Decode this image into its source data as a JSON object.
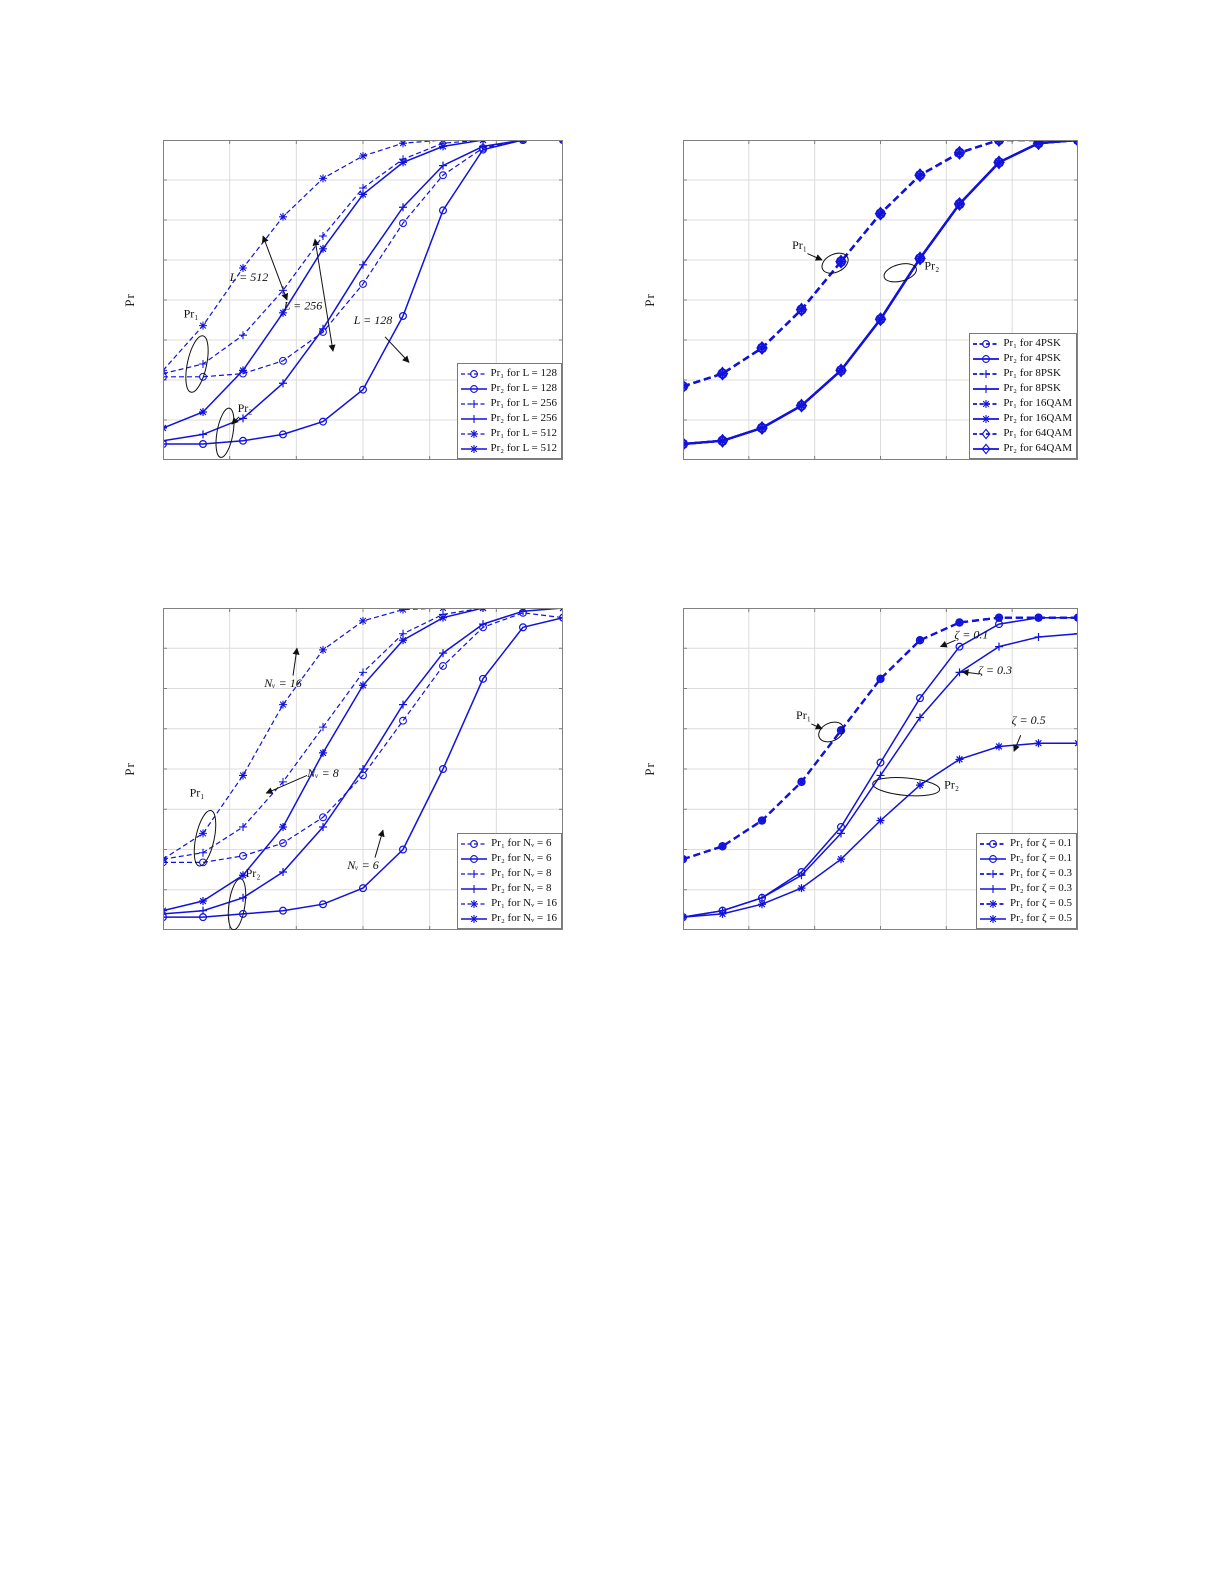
{
  "page": {
    "background": "#ffffff"
  },
  "colors": {
    "line": "#1212dd",
    "grid": "#dcdcdc",
    "axis": "#808080",
    "annotation": "#111111"
  },
  "chart_data": [
    {
      "id": "pr-vs-snr-for-L",
      "type": "line",
      "title": "",
      "xlabel": "",
      "ylabel": "Pr",
      "x_axis_note": "tick labels not visible; x normalized 0-1",
      "ylim": [
        0,
        1
      ],
      "grid": {
        "cols": 6,
        "rows": 8
      },
      "legend_position": "lower-right",
      "marker_size": 4,
      "x": [
        0,
        0.1,
        0.2,
        0.3,
        0.4,
        0.5,
        0.6,
        0.7,
        0.8,
        0.9,
        1
      ],
      "series": [
        {
          "label": "Pr₁ for L = 128",
          "marker": "circle",
          "dashed": true,
          "lw": 1.2,
          "values": [
            0.26,
            0.26,
            0.27,
            0.31,
            0.4,
            0.55,
            0.74,
            0.89,
            0.975,
            1,
            1
          ]
        },
        {
          "label": "Pr₂ for L = 128",
          "marker": "circle",
          "dashed": false,
          "lw": 1.5,
          "values": [
            0.05,
            0.05,
            0.06,
            0.08,
            0.12,
            0.22,
            0.45,
            0.78,
            0.97,
            1,
            1
          ]
        },
        {
          "label": "Pr₁ for L = 256",
          "marker": "plus",
          "dashed": true,
          "lw": 1.2,
          "values": [
            0.27,
            0.3,
            0.39,
            0.53,
            0.7,
            0.85,
            0.94,
            0.99,
            1,
            1,
            1
          ]
        },
        {
          "label": "Pr₂ for L = 256",
          "marker": "plus",
          "dashed": false,
          "lw": 1.5,
          "values": [
            0.06,
            0.08,
            0.13,
            0.24,
            0.41,
            0.61,
            0.79,
            0.92,
            0.98,
            1,
            1
          ]
        },
        {
          "label": "Pr₁ for L = 512",
          "marker": "asterisk",
          "dashed": true,
          "lw": 1.2,
          "values": [
            0.28,
            0.42,
            0.6,
            0.76,
            0.88,
            0.95,
            0.99,
            1,
            1,
            1,
            1
          ]
        },
        {
          "label": "Pr₂ for L = 512",
          "marker": "asterisk",
          "dashed": false,
          "lw": 1.5,
          "values": [
            0.1,
            0.15,
            0.28,
            0.46,
            0.66,
            0.83,
            0.93,
            0.98,
            1,
            1,
            1
          ]
        }
      ],
      "annotations": [
        {
          "type": "text",
          "text": "L = 512",
          "fx": 0.215,
          "fy": 0.56,
          "italic": true
        },
        {
          "type": "arrow",
          "x1": 0.25,
          "y1": 0.7,
          "x2": 0.31,
          "y2": 0.5,
          "double": true
        },
        {
          "type": "text",
          "text": "L = 256",
          "fx": 0.35,
          "fy": 0.47,
          "italic": true
        },
        {
          "type": "arrow",
          "x1": 0.38,
          "y1": 0.69,
          "x2": 0.425,
          "y2": 0.34,
          "double": true
        },
        {
          "type": "text",
          "text": "L = 128",
          "fx": 0.525,
          "fy": 0.425,
          "italic": true
        },
        {
          "type": "arrow",
          "x1": 0.555,
          "y1": 0.385,
          "x2": 0.615,
          "y2": 0.305,
          "double": false
        },
        {
          "type": "text",
          "text": "Pr₁",
          "fx": 0.07,
          "fy": 0.445,
          "italic": false
        },
        {
          "type": "ellipse",
          "cx": 0.085,
          "cy": 0.3,
          "rx": 0.024,
          "ry": 0.09,
          "rot": 12
        },
        {
          "type": "text",
          "text": "Pr₂",
          "fx": 0.205,
          "fy": 0.15,
          "italic": false
        },
        {
          "type": "arrow",
          "x1": 0.19,
          "y1": 0.135,
          "x2": 0.172,
          "y2": 0.112,
          "double": false
        },
        {
          "type": "ellipse",
          "cx": 0.155,
          "cy": 0.085,
          "rx": 0.02,
          "ry": 0.078,
          "rot": 10
        }
      ]
    },
    {
      "id": "pr-vs-snr-for-modulation",
      "type": "line",
      "title": "",
      "xlabel": "",
      "ylabel": "Pr",
      "x_axis_note": "tick labels not visible; x normalized 0-1",
      "ylim": [
        0,
        1
      ],
      "grid": {
        "cols": 6,
        "rows": 8
      },
      "legend_position": "lower-right",
      "marker_size": 5,
      "x": [
        0,
        0.1,
        0.2,
        0.3,
        0.4,
        0.5,
        0.6,
        0.7,
        0.8,
        0.9,
        1
      ],
      "series": [
        {
          "label": "Pr₁ for 4PSK",
          "marker": "circle",
          "dashed": true,
          "lw": 2.3,
          "values": [
            0.23,
            0.27,
            0.35,
            0.47,
            0.62,
            0.77,
            0.89,
            0.96,
            1,
            1,
            1
          ]
        },
        {
          "label": "Pr₂ for 4PSK",
          "marker": "circle",
          "dashed": false,
          "lw": 2.3,
          "values": [
            0.05,
            0.06,
            0.1,
            0.17,
            0.28,
            0.44,
            0.63,
            0.8,
            0.93,
            0.99,
            1
          ]
        },
        {
          "label": "Pr₁ for 8PSK",
          "marker": "plus",
          "dashed": true,
          "lw": 2.3,
          "values": [
            0.23,
            0.27,
            0.35,
            0.47,
            0.62,
            0.77,
            0.89,
            0.96,
            1,
            1,
            1
          ]
        },
        {
          "label": "Pr₂ for 8PSK",
          "marker": "plus",
          "dashed": false,
          "lw": 2.3,
          "values": [
            0.05,
            0.06,
            0.1,
            0.17,
            0.28,
            0.44,
            0.63,
            0.8,
            0.93,
            0.99,
            1
          ]
        },
        {
          "label": "Pr₁ for 16QAM",
          "marker": "asterisk",
          "dashed": true,
          "lw": 2.3,
          "values": [
            0.23,
            0.27,
            0.35,
            0.47,
            0.62,
            0.77,
            0.89,
            0.96,
            1,
            1,
            1
          ]
        },
        {
          "label": "Pr₂ for 16QAM",
          "marker": "asterisk",
          "dashed": false,
          "lw": 2.3,
          "values": [
            0.05,
            0.06,
            0.1,
            0.17,
            0.28,
            0.44,
            0.63,
            0.8,
            0.93,
            0.99,
            1
          ]
        },
        {
          "label": "Pr₁ for 64QAM",
          "marker": "diamond",
          "dashed": true,
          "lw": 2.3,
          "values": [
            0.23,
            0.27,
            0.35,
            0.47,
            0.62,
            0.77,
            0.89,
            0.96,
            1,
            1,
            1
          ]
        },
        {
          "label": "Pr₂ for 64QAM",
          "marker": "diamond",
          "dashed": false,
          "lw": 2.3,
          "values": [
            0.05,
            0.06,
            0.1,
            0.17,
            0.28,
            0.44,
            0.63,
            0.8,
            0.93,
            0.99,
            1
          ]
        }
      ],
      "annotations": [
        {
          "type": "text",
          "text": "Pr₁",
          "fx": 0.295,
          "fy": 0.66,
          "italic": false
        },
        {
          "type": "arrow",
          "x1": 0.315,
          "y1": 0.645,
          "x2": 0.352,
          "y2": 0.625,
          "double": false
        },
        {
          "type": "ellipse",
          "cx": 0.385,
          "cy": 0.615,
          "rx": 0.035,
          "ry": 0.028,
          "rot": -25
        },
        {
          "type": "text",
          "text": "Pr₂",
          "fx": 0.63,
          "fy": 0.595,
          "italic": false
        },
        {
          "type": "ellipse",
          "cx": 0.55,
          "cy": 0.585,
          "rx": 0.042,
          "ry": 0.026,
          "rot": -15
        }
      ]
    },
    {
      "id": "pr-vs-snr-for-Nv",
      "type": "line",
      "title": "",
      "xlabel": "",
      "ylabel": "Pr",
      "x_axis_note": "tick labels not visible; x normalized 0-1",
      "ylim": [
        0,
        1
      ],
      "grid": {
        "cols": 6,
        "rows": 8
      },
      "legend_position": "lower-right",
      "marker_size": 4,
      "x": [
        0,
        0.1,
        0.2,
        0.3,
        0.4,
        0.5,
        0.6,
        0.7,
        0.8,
        0.9,
        1
      ],
      "series": [
        {
          "label": "Pr₁ for Nᵥ = 6",
          "marker": "circle",
          "dashed": true,
          "lw": 1.2,
          "values": [
            0.21,
            0.21,
            0.23,
            0.27,
            0.35,
            0.48,
            0.65,
            0.82,
            0.94,
            0.985,
            0.97
          ]
        },
        {
          "label": "Pr₂ for Nᵥ = 6",
          "marker": "circle",
          "dashed": false,
          "lw": 1.5,
          "values": [
            0.04,
            0.04,
            0.05,
            0.06,
            0.08,
            0.13,
            0.25,
            0.5,
            0.78,
            0.94,
            0.97
          ]
        },
        {
          "label": "Pr₁ for Nᵥ = 8",
          "marker": "plus",
          "dashed": true,
          "lw": 1.2,
          "values": [
            0.22,
            0.24,
            0.32,
            0.46,
            0.63,
            0.8,
            0.92,
            0.98,
            1,
            1,
            1
          ]
        },
        {
          "label": "Pr₂ for Nᵥ = 8",
          "marker": "plus",
          "dashed": false,
          "lw": 1.5,
          "values": [
            0.05,
            0.06,
            0.1,
            0.18,
            0.32,
            0.5,
            0.7,
            0.86,
            0.95,
            0.99,
            1
          ]
        },
        {
          "label": "Pr₁ for Nᵥ = 16",
          "marker": "asterisk",
          "dashed": true,
          "lw": 1.2,
          "values": [
            0.22,
            0.3,
            0.48,
            0.7,
            0.87,
            0.96,
            0.995,
            1,
            1,
            1,
            1
          ]
        },
        {
          "label": "Pr₂ for Nᵥ = 16",
          "marker": "asterisk",
          "dashed": false,
          "lw": 1.5,
          "values": [
            0.06,
            0.09,
            0.17,
            0.32,
            0.55,
            0.76,
            0.9,
            0.97,
            1,
            1,
            1
          ]
        }
      ],
      "annotations": [
        {
          "type": "text",
          "text": "Nᵥ = 16",
          "fx": 0.3,
          "fy": 0.755,
          "italic": true
        },
        {
          "type": "arrow",
          "x1": 0.325,
          "y1": 0.79,
          "x2": 0.335,
          "y2": 0.875,
          "double": false
        },
        {
          "type": "text",
          "text": "Nᵥ = 8",
          "fx": 0.4,
          "fy": 0.475,
          "italic": true
        },
        {
          "type": "arrow",
          "x1": 0.36,
          "y1": 0.48,
          "x2": 0.258,
          "y2": 0.425,
          "double": false
        },
        {
          "type": "text",
          "text": "Nᵥ = 6",
          "fx": 0.5,
          "fy": 0.19,
          "italic": true
        },
        {
          "type": "arrow",
          "x1": 0.53,
          "y1": 0.225,
          "x2": 0.55,
          "y2": 0.31,
          "double": false
        },
        {
          "type": "text",
          "text": "Pr₁",
          "fx": 0.085,
          "fy": 0.415,
          "italic": false
        },
        {
          "type": "ellipse",
          "cx": 0.105,
          "cy": 0.285,
          "rx": 0.023,
          "ry": 0.088,
          "rot": 12
        },
        {
          "type": "text",
          "text": "Pr₂",
          "fx": 0.225,
          "fy": 0.165,
          "italic": false
        },
        {
          "type": "ellipse",
          "cx": 0.185,
          "cy": 0.08,
          "rx": 0.02,
          "ry": 0.08,
          "rot": 8
        }
      ]
    },
    {
      "id": "pr-vs-snr-for-zeta",
      "type": "line",
      "title": "",
      "xlabel": "",
      "ylabel": "Pr",
      "x_axis_note": "tick labels not visible; x normalized 0-1",
      "ylim": [
        0,
        1
      ],
      "grid": {
        "cols": 6,
        "rows": 8
      },
      "legend_position": "lower-right",
      "marker_size": 4,
      "x": [
        0,
        0.1,
        0.2,
        0.3,
        0.4,
        0.5,
        0.6,
        0.7,
        0.8,
        0.9,
        1
      ],
      "series": [
        {
          "label": "Pr₁ for ζ = 0.1",
          "marker": "circle",
          "dashed": true,
          "lw": 2.2,
          "values": [
            0.22,
            0.26,
            0.34,
            0.46,
            0.62,
            0.78,
            0.9,
            0.955,
            0.97,
            0.97,
            0.97
          ]
        },
        {
          "label": "Pr₂ for ζ = 0.1",
          "marker": "circle",
          "dashed": false,
          "lw": 1.5,
          "values": [
            0.04,
            0.06,
            0.1,
            0.18,
            0.32,
            0.52,
            0.72,
            0.88,
            0.95,
            0.97,
            0.97
          ]
        },
        {
          "label": "Pr₁ for ζ = 0.3",
          "marker": "plus",
          "dashed": true,
          "lw": 2.2,
          "values": [
            0.22,
            0.26,
            0.34,
            0.46,
            0.62,
            0.78,
            0.9,
            0.955,
            0.97,
            0.97,
            0.97
          ]
        },
        {
          "label": "Pr₂ for ζ = 0.3",
          "marker": "plus",
          "dashed": false,
          "lw": 1.5,
          "values": [
            0.04,
            0.06,
            0.1,
            0.17,
            0.3,
            0.48,
            0.66,
            0.8,
            0.88,
            0.91,
            0.92
          ]
        },
        {
          "label": "Pr₁ for ζ = 0.5",
          "marker": "asterisk",
          "dashed": true,
          "lw": 2.2,
          "values": [
            0.22,
            0.26,
            0.34,
            0.46,
            0.62,
            0.78,
            0.9,
            0.955,
            0.97,
            0.97,
            0.97
          ]
        },
        {
          "label": "Pr₂ for ζ = 0.5",
          "marker": "asterisk",
          "dashed": false,
          "lw": 1.5,
          "values": [
            0.04,
            0.05,
            0.08,
            0.13,
            0.22,
            0.34,
            0.45,
            0.53,
            0.57,
            0.58,
            0.58
          ]
        }
      ],
      "annotations": [
        {
          "type": "text",
          "text": "ζ = 0.1",
          "fx": 0.73,
          "fy": 0.905,
          "italic": true
        },
        {
          "type": "arrow",
          "x1": 0.69,
          "y1": 0.9,
          "x2": 0.652,
          "y2": 0.88,
          "double": false
        },
        {
          "type": "text",
          "text": "ζ = 0.3",
          "fx": 0.79,
          "fy": 0.795,
          "italic": true
        },
        {
          "type": "arrow",
          "x1": 0.75,
          "y1": 0.795,
          "x2": 0.707,
          "y2": 0.802,
          "double": false
        },
        {
          "type": "text",
          "text": "ζ = 0.5",
          "fx": 0.875,
          "fy": 0.64,
          "italic": true
        },
        {
          "type": "arrow",
          "x1": 0.855,
          "y1": 0.605,
          "x2": 0.838,
          "y2": 0.555,
          "double": false
        },
        {
          "type": "text",
          "text": "Pr₁",
          "fx": 0.305,
          "fy": 0.655,
          "italic": false
        },
        {
          "type": "arrow",
          "x1": 0.325,
          "y1": 0.64,
          "x2": 0.352,
          "y2": 0.625,
          "double": false
        },
        {
          "type": "ellipse",
          "cx": 0.375,
          "cy": 0.615,
          "rx": 0.033,
          "ry": 0.028,
          "rot": -25
        },
        {
          "type": "text",
          "text": "Pr₂",
          "fx": 0.68,
          "fy": 0.44,
          "italic": false
        },
        {
          "type": "ellipse",
          "cx": 0.565,
          "cy": 0.445,
          "rx": 0.085,
          "ry": 0.027,
          "rot": 5
        }
      ]
    }
  ]
}
